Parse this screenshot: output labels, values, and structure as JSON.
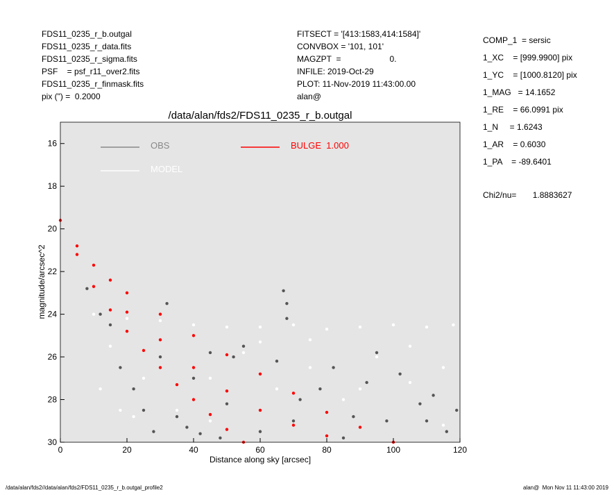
{
  "header": {
    "left": [
      "FDS11_0235_r_b.outgal",
      "FDS11_0235_r_data.fits",
      "FDS11_0235_r_sigma.fits",
      "PSF    = psf_r11_over2.fits",
      "FDS11_0235_r_finmask.fits",
      "pix (\") =  0.2000"
    ],
    "middle": [
      "FITSECT = '[413:1583,414:1584]'",
      "CONVBOX = '101, 101'",
      "MAGZPT  =                     0.",
      "INFILE: 2019-Oct-29",
      "PLOT: 11-Nov-2019 11:43:00.00",
      "alan@"
    ],
    "right": [
      "COMP_1  = sersic",
      "1_XC    = [999.9900] pix",
      "1_YC    = [1000.8120] pix",
      "1_MAG   = 14.1652",
      "1_RE    = 66.0991 pix",
      "1_N     = 1.6243",
      "1_AR    = 0.6030",
      "1_PA    = -89.6401"
    ],
    "chi2": "Chi2/nu=       1.8883627"
  },
  "footer": {
    "left": "/data/alan/fds2//data/alan/fds2/FDS11_0235_r_b.outgal_profile2",
    "right": "alan@  Mon Nov 11 11:43:00 2019"
  },
  "chart_data": {
    "type": "scatter",
    "title": "/data/alan/fds2/FDS11_0235_r_b.outgal",
    "x_label": "Distance along sky [arcsec]",
    "y_label": "magnitude/arcsec^2",
    "xlim": [
      0,
      120
    ],
    "xticks": [
      0,
      20,
      40,
      60,
      80,
      100,
      120
    ],
    "ylim": [
      15,
      30
    ],
    "y_inverted": true,
    "yticks": [
      16,
      18,
      20,
      22,
      24,
      26,
      28,
      30
    ],
    "background": "#e5e5e5",
    "series": [
      {
        "name": "MODEL",
        "color": "#ffffff",
        "x": [
          10,
          15,
          20,
          25,
          30,
          35,
          40,
          45,
          50,
          55,
          60,
          65,
          70,
          75,
          80,
          85,
          90,
          95,
          100,
          105,
          110,
          115,
          118,
          22,
          28,
          45,
          60,
          75,
          90,
          105,
          115,
          12,
          18
        ],
        "values": [
          24.0,
          25.5,
          24.2,
          27.0,
          24.3,
          28.5,
          24.5,
          29.0,
          24.6,
          25.8,
          24.6,
          27.5,
          24.5,
          26.5,
          24.7,
          28.0,
          24.6,
          26.0,
          24.5,
          27.2,
          24.6,
          29.2,
          24.5,
          28.8,
          29.5,
          27.0,
          25.3,
          25.2,
          27.5,
          25.5,
          26.5,
          27.5,
          28.5
        ]
      },
      {
        "name": "OBS",
        "color": "#555555",
        "x": [
          8,
          12,
          15,
          18,
          22,
          25,
          28,
          32,
          35,
          38,
          42,
          45,
          48,
          52,
          55,
          60,
          65,
          68,
          72,
          78,
          82,
          88,
          92,
          98,
          102,
          108,
          112,
          116,
          119,
          30,
          40,
          50,
          70,
          85,
          95,
          110,
          68,
          67
        ],
        "values": [
          22.8,
          24.0,
          24.5,
          26.5,
          27.5,
          28.5,
          29.5,
          23.5,
          28.8,
          29.3,
          29.6,
          25.8,
          29.8,
          26.0,
          25.5,
          29.5,
          26.2,
          24.2,
          28.0,
          27.5,
          26.5,
          28.8,
          27.2,
          29.0,
          26.8,
          28.2,
          27.8,
          29.5,
          28.5,
          26.0,
          27.0,
          28.2,
          29.0,
          29.8,
          25.8,
          29.0,
          23.5,
          22.9
        ]
      },
      {
        "name": "BULGE  1.000",
        "color": "#ff0000",
        "x": [
          0,
          5,
          10,
          15,
          20,
          30,
          40,
          50,
          60,
          70,
          80,
          90,
          100,
          5,
          10,
          15,
          20,
          25,
          30,
          35,
          40,
          45,
          50,
          55,
          20,
          30,
          40,
          50,
          60,
          70,
          80
        ],
        "values": [
          19.6,
          20.8,
          21.7,
          22.4,
          23.0,
          24.0,
          25.0,
          25.9,
          26.8,
          27.7,
          28.6,
          29.3,
          30.0,
          21.2,
          22.7,
          23.8,
          24.8,
          25.7,
          26.5,
          27.3,
          28.0,
          28.7,
          29.4,
          30.0,
          23.9,
          25.2,
          26.5,
          27.6,
          28.5,
          29.2,
          29.7
        ]
      }
    ]
  }
}
